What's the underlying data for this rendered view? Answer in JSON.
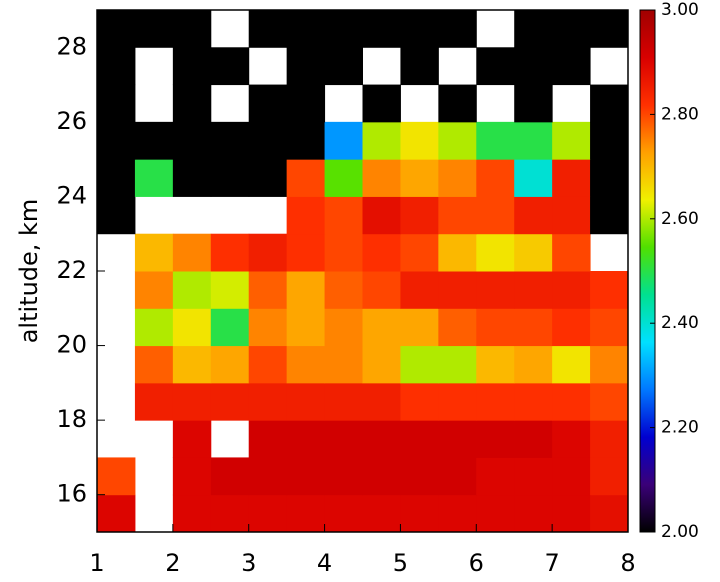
{
  "chart_data": {
    "type": "heatmap",
    "y_label": "altitude,  km",
    "xbins": [
      1,
      1.5,
      2,
      2.5,
      3,
      3.5,
      4,
      4.5,
      5,
      5.5,
      6,
      6.5,
      7,
      7.5,
      8
    ],
    "ybins": [
      15,
      16,
      17,
      18,
      19,
      20,
      21,
      22,
      23,
      24,
      25,
      26,
      27,
      28,
      29
    ],
    "z": [
      [
        2.9,
        null,
        2.9,
        2.9,
        2.9,
        2.9,
        2.9,
        2.9,
        2.9,
        2.9,
        2.9,
        2.9,
        2.9,
        2.88
      ],
      [
        2.8,
        null,
        2.9,
        2.92,
        2.92,
        2.92,
        2.92,
        2.92,
        2.92,
        2.92,
        2.9,
        2.9,
        2.9,
        2.85
      ],
      [
        null,
        null,
        2.9,
        null,
        2.92,
        2.92,
        2.92,
        2.92,
        2.92,
        2.92,
        2.92,
        2.92,
        2.9,
        2.85
      ],
      [
        null,
        2.85,
        2.85,
        2.85,
        2.85,
        2.85,
        2.85,
        2.85,
        2.82,
        2.82,
        2.82,
        2.82,
        2.82,
        2.8
      ],
      [
        null,
        2.78,
        2.7,
        2.72,
        2.8,
        2.75,
        2.75,
        2.72,
        2.6,
        2.6,
        2.7,
        2.72,
        2.65,
        2.75
      ],
      [
        null,
        2.6,
        2.65,
        2.5,
        2.75,
        2.72,
        2.75,
        2.72,
        2.72,
        2.78,
        2.8,
        2.8,
        2.82,
        2.8
      ],
      [
        null,
        2.75,
        2.6,
        2.62,
        2.78,
        2.72,
        2.78,
        2.8,
        2.85,
        2.85,
        2.85,
        2.85,
        2.85,
        2.82
      ],
      [
        null,
        2.7,
        2.75,
        2.82,
        2.85,
        2.82,
        2.8,
        2.82,
        2.8,
        2.7,
        2.65,
        2.68,
        2.8,
        null
      ],
      [
        2.0,
        null,
        null,
        null,
        null,
        2.82,
        2.8,
        2.88,
        2.85,
        2.8,
        2.8,
        2.85,
        2.85,
        2.0
      ],
      [
        2.0,
        2.5,
        2.0,
        2.0,
        2.0,
        2.8,
        2.55,
        2.75,
        2.72,
        2.75,
        2.8,
        2.4,
        2.85,
        2.0
      ],
      [
        2.0,
        2.0,
        2.0,
        2.0,
        2.0,
        2.0,
        2.3,
        2.6,
        2.65,
        2.6,
        2.5,
        2.5,
        2.6,
        2.0
      ],
      [
        2.0,
        null,
        2.0,
        null,
        2.0,
        2.0,
        null,
        2.0,
        null,
        2.0,
        null,
        2.0,
        null,
        2.0
      ],
      [
        2.0,
        null,
        2.0,
        2.0,
        null,
        2.0,
        2.0,
        null,
        2.0,
        null,
        2.0,
        2.0,
        2.0,
        null
      ],
      [
        2.0,
        2.0,
        2.0,
        null,
        2.0,
        2.0,
        2.0,
        2.0,
        2.0,
        2.0,
        null,
        2.0,
        2.0,
        2.0
      ]
    ],
    "xlim": [
      1,
      8
    ],
    "xticks": [
      1,
      2,
      3,
      4,
      5,
      6,
      7,
      8
    ],
    "ylim": [
      15,
      29
    ],
    "yticks": [
      16,
      18,
      20,
      22,
      24,
      26,
      28
    ],
    "zlim": [
      2,
      3
    ],
    "zticks": [
      {
        "value": 2.0,
        "label": "2.00"
      },
      {
        "value": 2.2,
        "label": "2.20"
      },
      {
        "value": 2.4,
        "label": "2.40"
      },
      {
        "value": 2.6,
        "label": "2.60"
      },
      {
        "value": 2.8,
        "label": "2.80"
      },
      {
        "value": 3.0,
        "label": "3.00"
      }
    ],
    "colormap": [
      "#000000",
      "#3a0078",
      "#0000d0",
      "#0078ff",
      "#00e0ff",
      "#00e090",
      "#50e000",
      "#f0f000",
      "#ffa000",
      "#ff3000",
      "#d80000",
      "#a00000"
    ]
  }
}
